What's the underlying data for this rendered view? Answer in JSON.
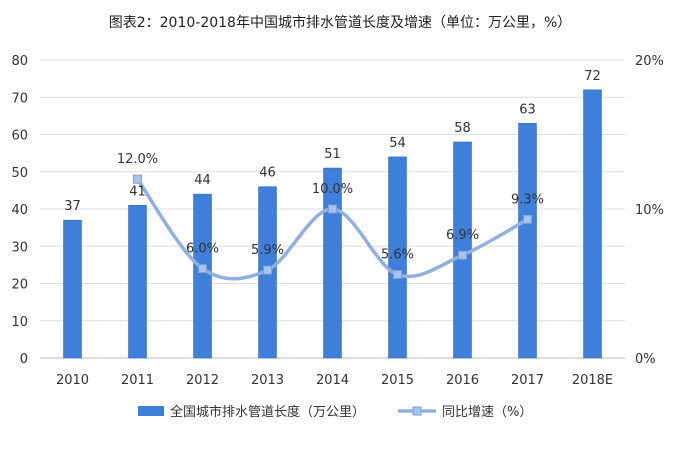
{
  "chart_data": {
    "type": "bar",
    "title": "图表2：2010-2018年中国城市排水管道长度及增速（单位：万公里，%）",
    "categories": [
      "2010",
      "2011",
      "2012",
      "2013",
      "2014",
      "2015",
      "2016",
      "2017",
      "2018E"
    ],
    "series": [
      {
        "name": "全国城市排水管道长度（万公里）",
        "type": "bar",
        "axis": "left",
        "values": [
          37,
          41,
          44,
          46,
          51,
          54,
          58,
          63,
          72
        ],
        "labels": [
          "37",
          "41",
          "44",
          "46",
          "51",
          "54",
          "58",
          "63",
          "72"
        ],
        "color": "#3d7fd9"
      },
      {
        "name": "同比增速（%）",
        "type": "line",
        "axis": "right",
        "smooth": true,
        "values": [
          null,
          12.0,
          6.0,
          5.9,
          10.0,
          5.6,
          6.9,
          9.3,
          null
        ],
        "labels": [
          "",
          "12.0%",
          "6.0%",
          "5.9%",
          "10.0%",
          "5.6%",
          "6.9%",
          "9.3%",
          ""
        ],
        "color": "#8fb0e0"
      }
    ],
    "ylim": [
      0,
      80
    ],
    "yticks": [
      "0",
      "10",
      "20",
      "30",
      "40",
      "50",
      "60",
      "70",
      "80"
    ],
    "y2lim": [
      0,
      20
    ],
    "y2ticks": [
      "0%",
      "10%",
      "20%"
    ],
    "grid": true,
    "legend": "bottom"
  }
}
